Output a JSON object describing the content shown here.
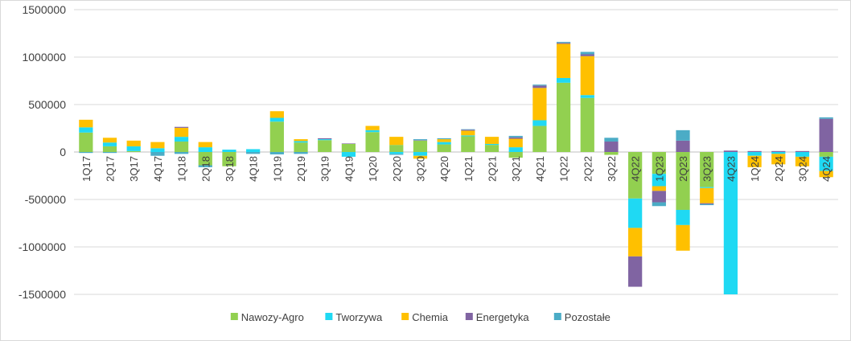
{
  "chart_data": {
    "type": "bar",
    "stacked": true,
    "title": "",
    "xlabel": "",
    "ylabel": "",
    "ylim": [
      -1500000,
      1500000
    ],
    "yticks": [
      1500000,
      1000000,
      500000,
      0,
      -500000,
      -1000000,
      -1500000
    ],
    "ytick_labels": [
      "1500000",
      "1000000",
      "500000",
      "0",
      "-500000",
      "-1000000",
      "-1500000"
    ],
    "grid": true,
    "legend_position": "bottom",
    "categories": [
      "1Q17",
      "2Q17",
      "3Q17",
      "4Q17",
      "1Q18",
      "2Q18",
      "3Q18",
      "4Q18",
      "1Q19",
      "2Q19",
      "3Q19",
      "4Q19",
      "1Q20",
      "2Q20",
      "3Q20",
      "4Q20",
      "1Q21",
      "2Q21",
      "3Q21",
      "4Q21",
      "1Q22",
      "2Q22",
      "3Q22",
      "4Q22",
      "1Q23",
      "2Q23",
      "3Q23",
      "4Q23",
      "1Q24",
      "2Q24",
      "3Q24",
      "4Q24"
    ],
    "series": [
      {
        "name": "Nawozy-Agro",
        "color": "#92d050",
        "values": [
          205000,
          60000,
          10000,
          0,
          110000,
          -140000,
          -150000,
          0,
          320000,
          100000,
          125000,
          85000,
          210000,
          75000,
          120000,
          80000,
          165000,
          75000,
          -60000,
          275000,
          730000,
          570000,
          -30000,
          -490000,
          -230000,
          -610000,
          -370000,
          0,
          0,
          0,
          0,
          -50000
        ]
      },
      {
        "name": "Tworzywa",
        "color": "#1fd9f3",
        "values": [
          55000,
          40000,
          50000,
          40000,
          50000,
          50000,
          25000,
          30000,
          40000,
          15000,
          10000,
          -50000,
          20000,
          -20000,
          -40000,
          25000,
          10000,
          10000,
          50000,
          60000,
          50000,
          30000,
          0,
          -310000,
          -130000,
          -160000,
          -10000,
          -1500000,
          -40000,
          -20000,
          -50000,
          -150000
        ]
      },
      {
        "name": "Chemia",
        "color": "#ffc000",
        "values": [
          80000,
          50000,
          60000,
          65000,
          95000,
          55000,
          0,
          0,
          70000,
          20000,
          0,
          0,
          45000,
          85000,
          -30000,
          30000,
          50000,
          75000,
          90000,
          340000,
          360000,
          410000,
          0,
          -300000,
          -50000,
          -270000,
          -160000,
          0,
          -120000,
          -110000,
          -100000,
          -65000
        ]
      },
      {
        "name": "Energetyka",
        "color": "#8064a2",
        "values": [
          0,
          0,
          0,
          0,
          10000,
          0,
          0,
          0,
          0,
          0,
          10000,
          5000,
          0,
          0,
          5000,
          0,
          10000,
          0,
          15000,
          25000,
          10000,
          20000,
          110000,
          -320000,
          -120000,
          120000,
          -10000,
          15000,
          10000,
          10000,
          10000,
          350000
        ]
      },
      {
        "name": "Pozostałe",
        "color": "#4bacc6",
        "values": [
          -10000,
          -10000,
          0,
          -40000,
          -20000,
          -20000,
          0,
          -20000,
          -25000,
          -20000,
          0,
          0,
          0,
          -10000,
          10000,
          10000,
          5000,
          0,
          15000,
          10000,
          10000,
          25000,
          40000,
          0,
          -40000,
          110000,
          -10000,
          0,
          0,
          0,
          0,
          15000
        ]
      }
    ]
  }
}
